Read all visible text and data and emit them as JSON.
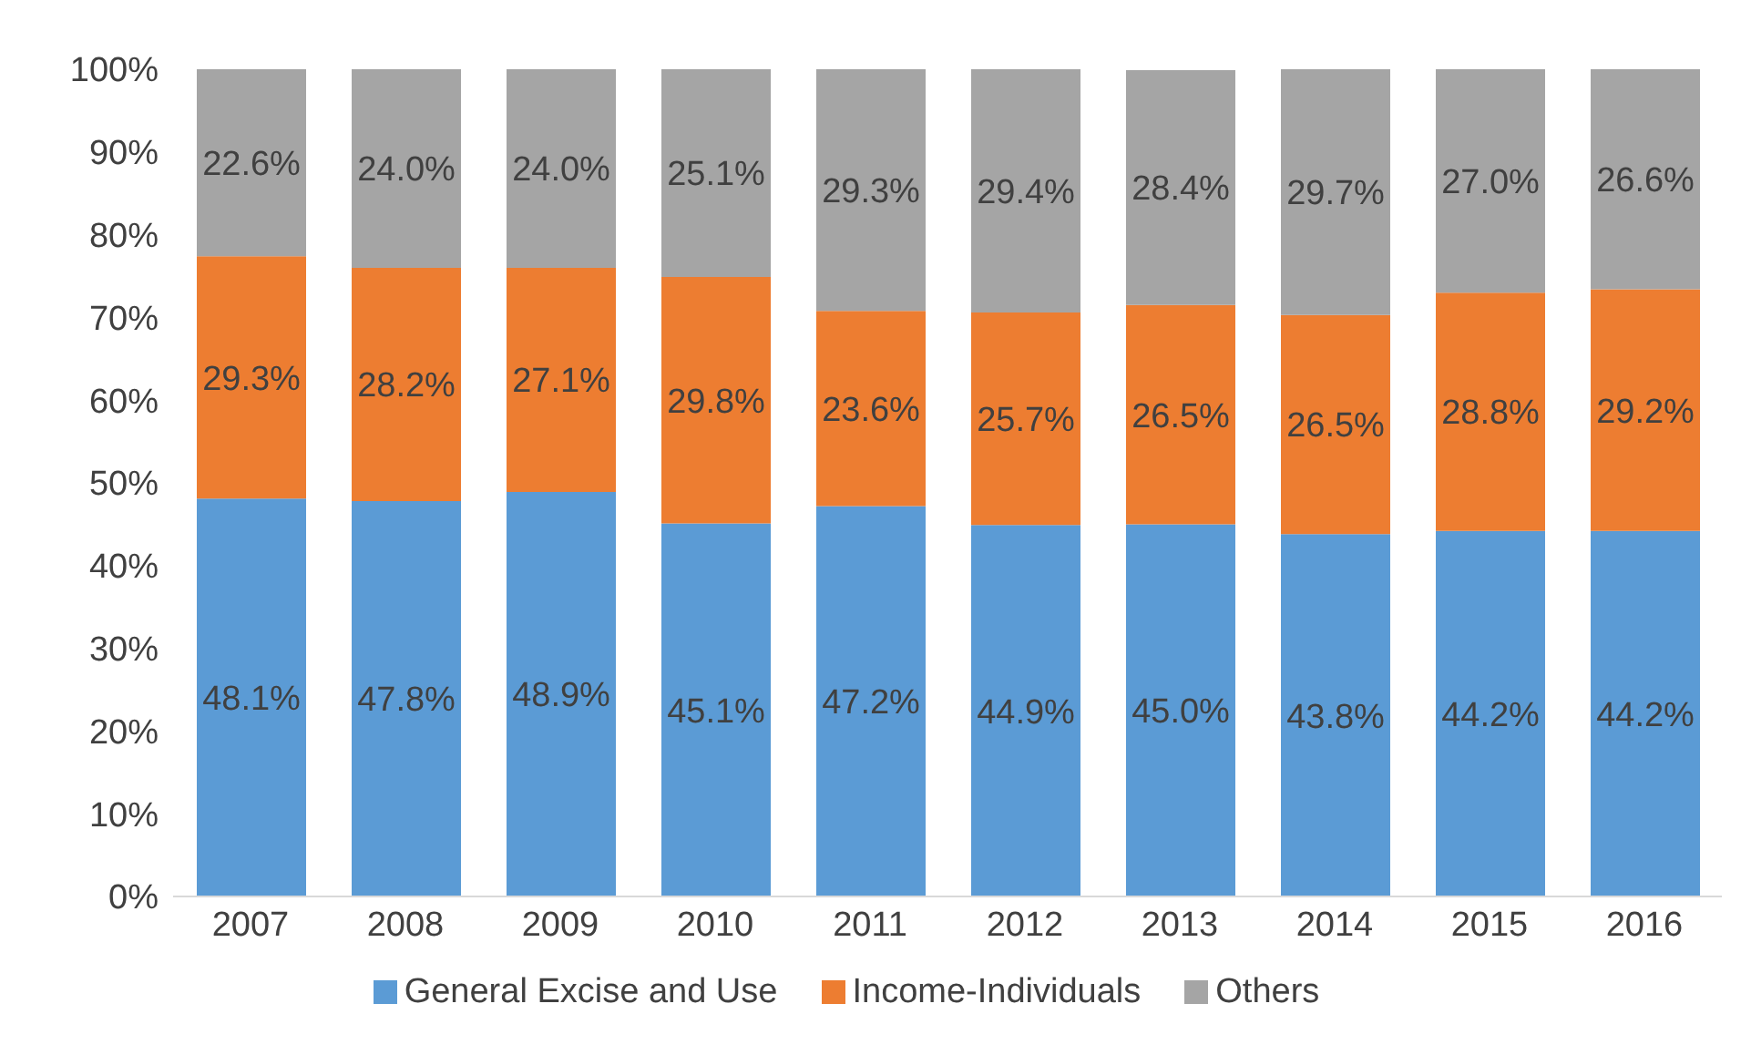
{
  "chart_data": {
    "type": "bar",
    "stacked": true,
    "categories": [
      "2007",
      "2008",
      "2009",
      "2010",
      "2011",
      "2012",
      "2013",
      "2014",
      "2015",
      "2016"
    ],
    "series": [
      {
        "name": "General Excise and Use",
        "color": "#5b9bd5",
        "values": [
          48.1,
          47.8,
          48.9,
          45.1,
          47.2,
          44.9,
          45.0,
          43.8,
          44.2,
          44.2
        ],
        "value_labels": [
          "48.1%",
          "47.8%",
          "48.9%",
          "45.1%",
          "47.2%",
          "44.9%",
          "45.0%",
          "43.8%",
          "44.2%",
          "44.2%"
        ]
      },
      {
        "name": "Income-Individuals",
        "color": "#ed7d31",
        "values": [
          29.3,
          28.2,
          27.1,
          29.8,
          23.6,
          25.7,
          26.5,
          26.5,
          28.8,
          29.2
        ],
        "value_labels": [
          "29.3%",
          "28.2%",
          "27.1%",
          "29.8%",
          "23.6%",
          "25.7%",
          "26.5%",
          "26.5%",
          "28.8%",
          "29.2%"
        ]
      },
      {
        "name": "Others",
        "color": "#a5a5a5",
        "values": [
          22.6,
          24.0,
          24.0,
          25.1,
          29.3,
          29.4,
          28.4,
          29.7,
          27.0,
          26.6
        ],
        "value_labels": [
          "22.6%",
          "24.0%",
          "24.0%",
          "25.1%",
          "29.3%",
          "29.4%",
          "28.4%",
          "29.7%",
          "27.0%",
          "26.6%"
        ]
      }
    ],
    "ylim": [
      0,
      100
    ],
    "yticks": [
      {
        "value": 0,
        "label": "0%"
      },
      {
        "value": 10,
        "label": "10%"
      },
      {
        "value": 20,
        "label": "20%"
      },
      {
        "value": 30,
        "label": "30%"
      },
      {
        "value": 40,
        "label": "40%"
      },
      {
        "value": 50,
        "label": "50%"
      },
      {
        "value": 60,
        "label": "60%"
      },
      {
        "value": 70,
        "label": "70%"
      },
      {
        "value": 80,
        "label": "80%"
      },
      {
        "value": 90,
        "label": "90%"
      },
      {
        "value": 100,
        "label": "100%"
      }
    ],
    "legend": "bottom",
    "grid": false
  }
}
